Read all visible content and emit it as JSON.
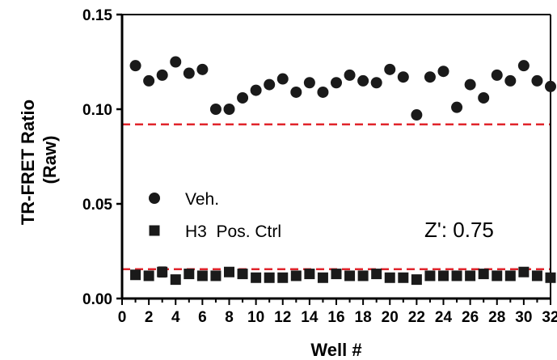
{
  "chart_data": {
    "type": "scatter",
    "xlabel": "Well #",
    "ylabel_lines": [
      "TR-FRET Ratio",
      "(Raw)"
    ],
    "xlim": [
      0,
      32
    ],
    "ylim": [
      0,
      0.15
    ],
    "x_ticks": [
      0,
      2,
      4,
      6,
      8,
      10,
      12,
      14,
      16,
      18,
      20,
      22,
      24,
      26,
      28,
      30,
      32
    ],
    "x_tick_labels": [
      "0",
      "2",
      "4",
      "6",
      "8",
      "10",
      "12",
      "14",
      "16",
      "18",
      "20",
      "22",
      "24",
      "26",
      "28",
      "30",
      "32"
    ],
    "y_ticks": [
      0,
      0.05,
      0.1,
      0.15
    ],
    "y_tick_labels": [
      "0.00",
      "0.05",
      "0.10",
      "0.15"
    ],
    "grid": false,
    "legend_placement": "center-left",
    "series": [
      {
        "name": "Veh.",
        "marker": "circle",
        "color": "#1a1a1a",
        "x": [
          1,
          2,
          3,
          4,
          5,
          6,
          7,
          8,
          9,
          10,
          11,
          12,
          13,
          14,
          15,
          16,
          17,
          18,
          19,
          20,
          21,
          22,
          23,
          24,
          25,
          26,
          27,
          28,
          29,
          30,
          31,
          32
        ],
        "y": [
          0.123,
          0.115,
          0.118,
          0.125,
          0.119,
          0.121,
          0.1,
          0.1,
          0.106,
          0.11,
          0.113,
          0.116,
          0.109,
          0.114,
          0.109,
          0.114,
          0.118,
          0.115,
          0.114,
          0.121,
          0.117,
          0.097,
          0.117,
          0.12,
          0.101,
          0.113,
          0.106,
          0.118,
          0.115,
          0.123,
          0.115,
          0.112
        ]
      },
      {
        "name": "H3  Pos. Ctrl",
        "marker": "square",
        "color": "#1a1a1a",
        "x": [
          1,
          2,
          3,
          4,
          5,
          6,
          7,
          8,
          9,
          10,
          11,
          12,
          13,
          14,
          15,
          16,
          17,
          18,
          19,
          20,
          21,
          22,
          23,
          24,
          25,
          26,
          27,
          28,
          29,
          30,
          31,
          32
        ],
        "y": [
          0.0125,
          0.012,
          0.014,
          0.01,
          0.013,
          0.012,
          0.012,
          0.014,
          0.013,
          0.011,
          0.011,
          0.011,
          0.012,
          0.013,
          0.011,
          0.013,
          0.012,
          0.012,
          0.013,
          0.011,
          0.011,
          0.01,
          0.012,
          0.012,
          0.012,
          0.012,
          0.013,
          0.012,
          0.012,
          0.014,
          0.012,
          0.011
        ]
      }
    ],
    "error_bars": [
      {
        "series": "H3  Pos. Ctrl",
        "x": 3,
        "low": 0.0115,
        "high": 0.0165
      },
      {
        "series": "H3  Pos. Ctrl",
        "x": 30,
        "low": 0.0125,
        "high": 0.0155
      },
      {
        "series": "H3  Pos. Ctrl",
        "x": 8,
        "low": 0.0125,
        "high": 0.0155
      }
    ],
    "threshold_lines": [
      {
        "y": 0.092,
        "color": "#e0252c",
        "style": "dashed"
      },
      {
        "y": 0.0155,
        "color": "#e0252c",
        "style": "dashed"
      }
    ],
    "annotation": "Z': 0.75"
  }
}
